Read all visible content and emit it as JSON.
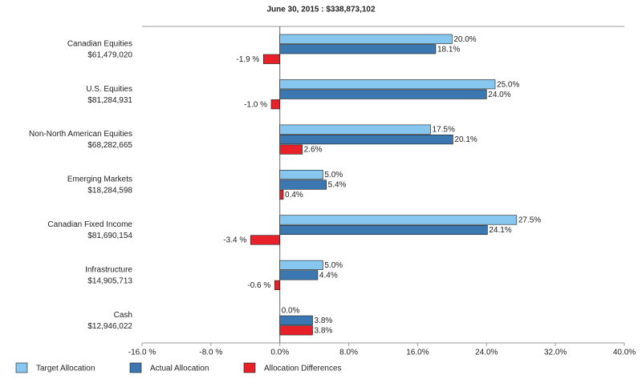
{
  "chart_data": {
    "type": "hbar",
    "title": "June 30, 2015 : $338,873,102",
    "categories": [
      "Canadian Equities",
      "U.S. Equities",
      "Non-North American Equities",
      "Emerging Markets",
      "Canadian Fixed Income",
      "Infrastructure",
      "Cash"
    ],
    "category_amounts": [
      "$61,479,020",
      "$81,284,931",
      "$68,282,665",
      "$18,284,598",
      "$81,690,154",
      "$14,905,713",
      "$12,946,022"
    ],
    "series": [
      {
        "name": "Target Allocation",
        "color": "#87c7ef",
        "values": [
          20.0,
          25.0,
          17.5,
          5.0,
          27.5,
          5.0,
          0.0
        ],
        "value_labels": [
          "20.0%",
          "25.0%",
          "17.5%",
          "5.0%",
          "27.5%",
          "5.0%",
          "0.0%"
        ]
      },
      {
        "name": "Actual Allocation",
        "color": "#3b78b2",
        "values": [
          18.1,
          24.0,
          20.1,
          5.4,
          24.1,
          4.4,
          3.8
        ],
        "value_labels": [
          "18.1%",
          "24.0%",
          "20.1%",
          "5.4%",
          "24.1%",
          "4.4%",
          "3.8%"
        ]
      },
      {
        "name": "Allocation Differences",
        "color": "#e8202a",
        "values": [
          -1.9,
          -1.0,
          2.6,
          0.4,
          -3.4,
          -0.6,
          3.8
        ],
        "value_labels": [
          "-1.9 %",
          "-1.0 %",
          "2.6%",
          "0.4%",
          "-3.4 %",
          "-0.6 %",
          "3.8%"
        ]
      }
    ],
    "xlim": [
      -16,
      40
    ],
    "xticks": [
      {
        "value": -16,
        "label": "-16.0 %"
      },
      {
        "value": -8,
        "label": "-8.0 %"
      },
      {
        "value": 0,
        "label": "0.0%"
      },
      {
        "value": 8,
        "label": "8.0%"
      },
      {
        "value": 16,
        "label": "16.0%"
      },
      {
        "value": 24,
        "label": "24.0%"
      },
      {
        "value": 32,
        "label": "32.0%"
      },
      {
        "value": 40,
        "label": "40.0%"
      }
    ],
    "legend": "bottom"
  }
}
